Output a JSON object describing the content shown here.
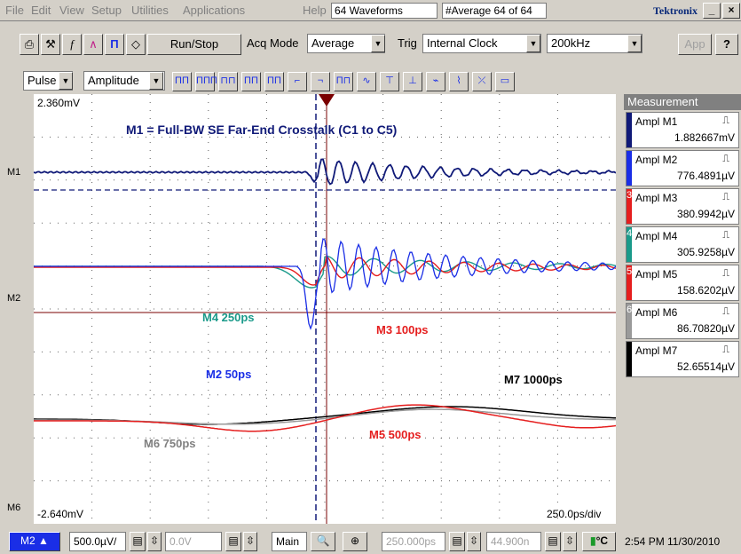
{
  "menu": {
    "items": [
      "File",
      "Edit",
      "View",
      "Setup",
      "Utilities",
      "Applications",
      "Help"
    ],
    "record_length": "64 Waveforms",
    "acq_status": "#Average  64 of 64",
    "brand": "Tektronix"
  },
  "toolbar": {
    "run_stop": "Run/Stop",
    "acq_mode_label": "Acq Mode",
    "acq_mode_value": "Average",
    "trig_label": "Trig",
    "trig_value": "Internal Clock",
    "trig_rate": "200kHz",
    "app_label": "App"
  },
  "meas_select": {
    "type": "Pulse",
    "param": "Amplitude"
  },
  "plot": {
    "top_label": "2.360mV",
    "bottom_label": "-2.640mV",
    "timebase": "250.0ps/div",
    "title": "M1 = Full-BW  SE Far-End Crosstalk (C1 to C5)",
    "annotations": {
      "m4": "M4 250ps",
      "m3": "M3 100ps",
      "m2": "M2 50ps",
      "m7": "M7 1000ps",
      "m6": "M6 750ps",
      "m5": "M5 500ps"
    },
    "markers": {
      "m1": "M1",
      "m2": "M2",
      "m6": "M6"
    },
    "colors": {
      "m1": "#101a78",
      "m2": "#1a2ee6",
      "m3": "#e51e1e",
      "m4": "#1a9a8a",
      "m5": "#e51e1e",
      "m6": "#9a9a9a",
      "m7": "#000000",
      "grid": "#7a0000"
    }
  },
  "measurement": {
    "header": "Measurement",
    "rows": [
      {
        "label": "Ampl   M1",
        "num": "",
        "value": "1.882667mV",
        "color": "#101a78"
      },
      {
        "label": "Ampl   M2",
        "num": "",
        "value": "776.4891µV",
        "color": "#1a2ee6"
      },
      {
        "label": "Ampl   M3",
        "num": "3",
        "value": "380.9942µV",
        "color": "#e51e1e"
      },
      {
        "label": "Ampl   M4",
        "num": "4",
        "value": "305.9258µV",
        "color": "#1a9a8a"
      },
      {
        "label": "Ampl   M5",
        "num": "5",
        "value": "158.6202µV",
        "color": "#e51e1e"
      },
      {
        "label": "Ampl   M6",
        "num": "6",
        "value": "86.70820µV",
        "color": "#9a9a9a"
      },
      {
        "label": "Ampl   M7",
        "num": "",
        "value": "52.65514µV",
        "color": "#000000"
      }
    ]
  },
  "status": {
    "channel": "M2",
    "scale": "500.0µV/",
    "offset": "0.0V",
    "main": "Main",
    "position": "250.000ps",
    "delay": "44.900n",
    "temp_unit": "°C",
    "clock": "2:54 PM 11/30/2010"
  }
}
